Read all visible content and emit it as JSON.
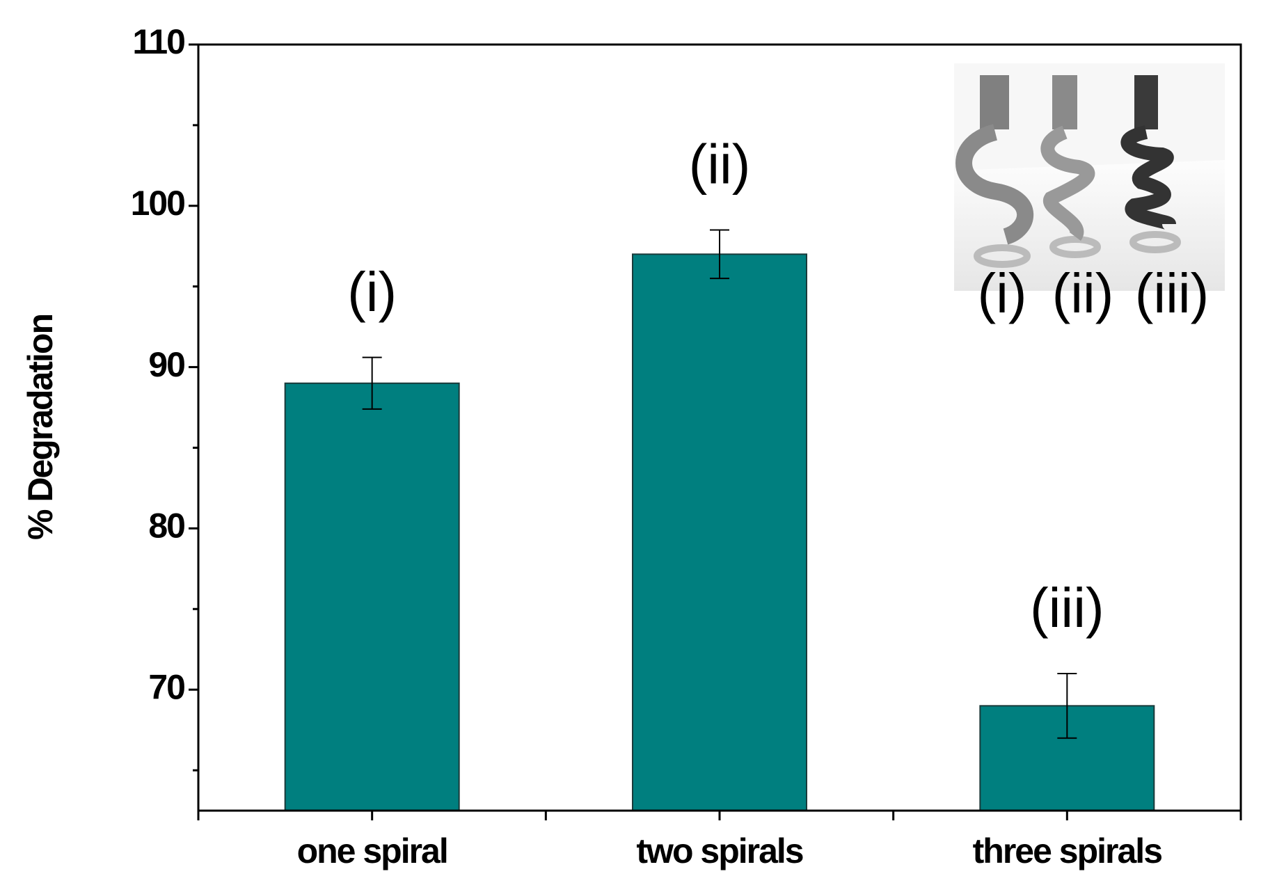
{
  "chart_data": {
    "type": "bar",
    "ylabel": "% Degradation",
    "categories": [
      "one spiral",
      "two spirals",
      "three spirals"
    ],
    "values": [
      89,
      97,
      69
    ],
    "errors": [
      1.6,
      1.5,
      2
    ],
    "annotations": [
      "(i)",
      "(ii)",
      "(iii)"
    ],
    "inset_labels": [
      "(i)",
      "(ii)",
      "(iii)"
    ],
    "color": "#007f7f",
    "ylim": [
      62.5,
      110
    ],
    "yticks": [
      70,
      80,
      90,
      100,
      110
    ],
    "yminorticks": [
      65,
      75,
      85,
      95,
      105
    ]
  }
}
